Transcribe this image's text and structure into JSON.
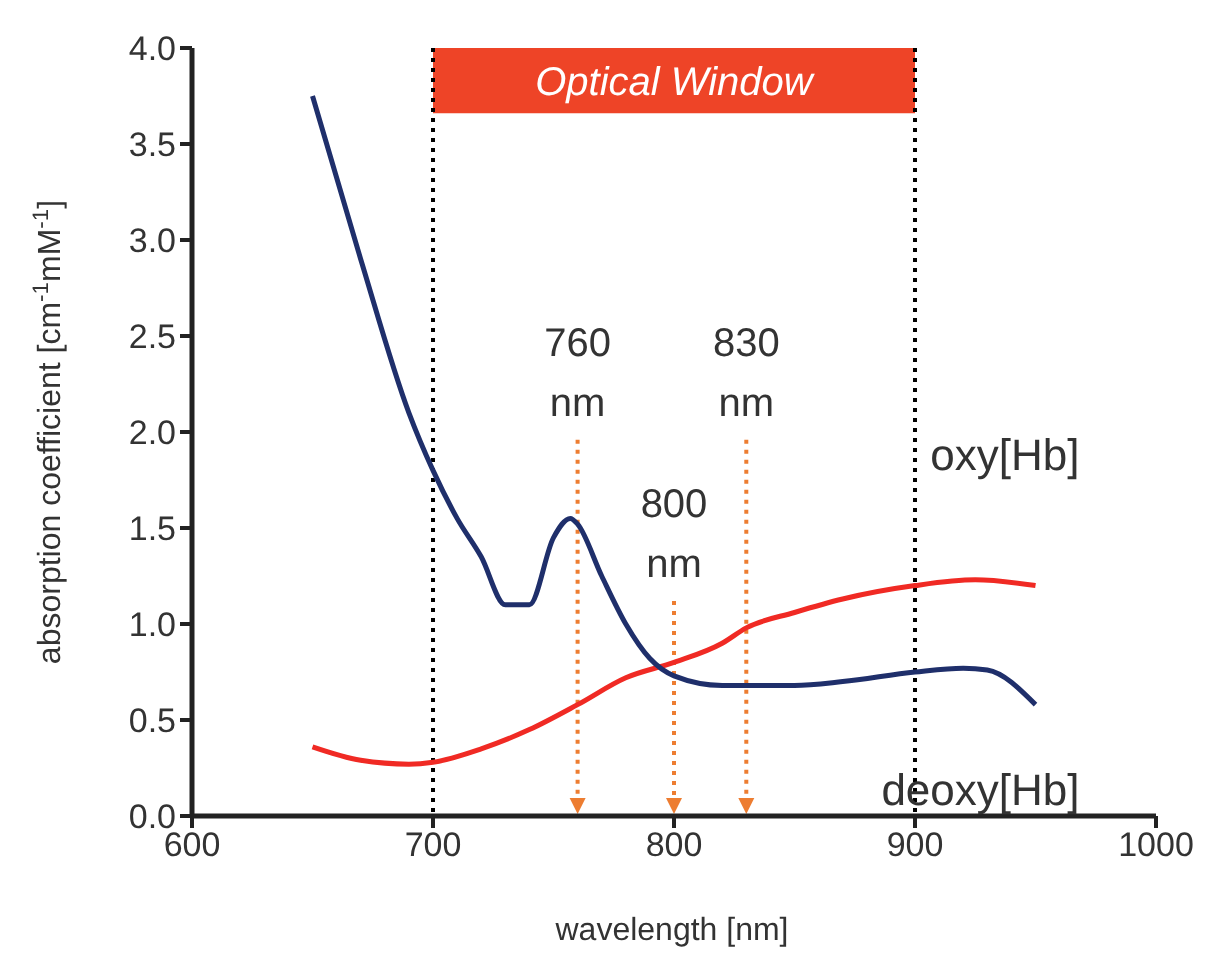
{
  "chart_data": {
    "type": "line",
    "xlabel": "wavelength  [nm]",
    "ylabel": "absorption coefficient [cm$^{-1}$mM$^{-1}$]",
    "xlim": [
      600,
      1000
    ],
    "xticks": [
      600,
      700,
      800,
      900,
      1000
    ],
    "ylim": [
      0,
      4
    ],
    "yticks": [
      {
        "value": 0,
        "label": "0.0"
      },
      {
        "value": 0.5,
        "label": "0.5"
      },
      {
        "value": 1,
        "label": "1.0"
      },
      {
        "value": 1.5,
        "label": "1.5"
      },
      {
        "value": 2,
        "label": "2.0"
      },
      {
        "value": 2.5,
        "label": "2.5"
      },
      {
        "value": 3,
        "label": "3.0"
      },
      {
        "value": 3.5,
        "label": "3.5"
      },
      {
        "value": 4,
        "label": "4.0"
      }
    ],
    "marker": "none",
    "line_style": "solid",
    "series": [
      {
        "name": "oxy[Hb]",
        "color": "#f02a24",
        "x": [
          650,
          670,
          690,
          700,
          720,
          740,
          760,
          780,
          800,
          820,
          830,
          850,
          870,
          900,
          925,
          950
        ],
        "values": [
          0.36,
          0.29,
          0.27,
          0.28,
          0.35,
          0.45,
          0.58,
          0.72,
          0.8,
          0.9,
          0.98,
          1.06,
          1.13,
          1.2,
          1.23,
          1.2
        ]
      },
      {
        "name": "deoxy[Hb]",
        "color": "#1f2f6b",
        "x": [
          650,
          670,
          690,
          700,
          710,
          720,
          730,
          740,
          750,
          757,
          760,
          770,
          780,
          790,
          800,
          820,
          850,
          870,
          900,
          920,
          930,
          950
        ],
        "values": [
          3.75,
          2.9,
          2.1,
          1.8,
          1.55,
          1.35,
          1.1,
          1.1,
          1.45,
          1.55,
          1.52,
          1.25,
          1.0,
          0.82,
          0.73,
          0.68,
          0.68,
          0.7,
          0.75,
          0.77,
          0.76,
          0.58
        ]
      }
    ],
    "bands": [
      {
        "axis": "x",
        "from": 700,
        "to": 900,
        "label": "Optical Window",
        "color": "#ee4427"
      }
    ],
    "ref_lines": [
      {
        "axis": "x",
        "value": 700,
        "color": "#000000",
        "line_style": "dotted"
      },
      {
        "axis": "x",
        "value": 900,
        "color": "#000000",
        "line_style": "dotted"
      },
      {
        "axis": "x",
        "value": 760,
        "label": "760 nm",
        "color": "#ed7d31",
        "line_style": "dotted"
      },
      {
        "axis": "x",
        "value": 800,
        "label": "800 nm",
        "color": "#ed7d31",
        "line_style": "dotted"
      },
      {
        "axis": "x",
        "value": 830,
        "label": "830 nm",
        "color": "#ed7d31",
        "line_style": "dotted"
      }
    ]
  }
}
